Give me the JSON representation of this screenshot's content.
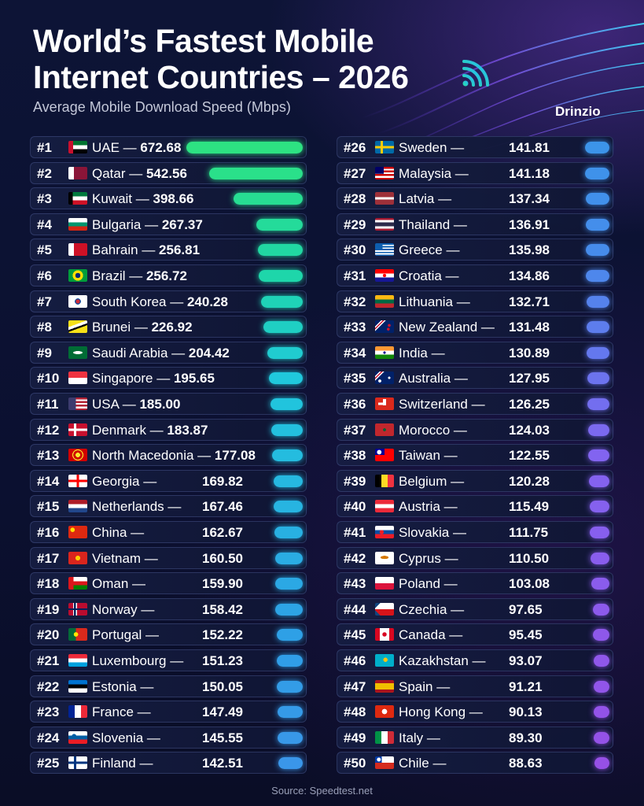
{
  "title_line1": "World’s Fastest Mobile",
  "title_line2": "Internet Countries – 2026",
  "subtitle": "Average Mobile Download Speed (Mbps)",
  "brand": "Drinzio",
  "source": "Source: Speedtest.net",
  "icon": "wifi-icon",
  "chart_data": {
    "type": "bar",
    "orientation": "horizontal",
    "title": "World’s Fastest Mobile Internet Countries – 2026",
    "subtitle": "Average Mobile Download Speed (Mbps)",
    "unit": "Mbps",
    "rows": [
      {
        "rank": "#1",
        "country": "UAE",
        "value": 672.68,
        "value_label": "672.68"
      },
      {
        "rank": "#2",
        "country": "Qatar",
        "value": 542.56,
        "value_label": "542.56"
      },
      {
        "rank": "#3",
        "country": "Kuwait",
        "value": 398.66,
        "value_label": "398.66"
      },
      {
        "rank": "#4",
        "country": "Bulgaria",
        "value": 267.37,
        "value_label": "267.37"
      },
      {
        "rank": "#5",
        "country": "Bahrain",
        "value": 256.81,
        "value_label": "256.81"
      },
      {
        "rank": "#6",
        "country": "Brazil",
        "value": 256.72,
        "value_label": "256.72"
      },
      {
        "rank": "#7",
        "country": "South Korea",
        "value": 240.28,
        "value_label": "240.28"
      },
      {
        "rank": "#8",
        "country": "Brunei",
        "value": 226.92,
        "value_label": "226.92"
      },
      {
        "rank": "#9",
        "country": "Saudi Arabia",
        "value": 204.42,
        "value_label": "204.42"
      },
      {
        "rank": "#10",
        "country": "Singapore",
        "value": 195.65,
        "value_label": "195.65"
      },
      {
        "rank": "#11",
        "country": "USA",
        "value": 185.0,
        "value_label": "185.00"
      },
      {
        "rank": "#12",
        "country": "Denmark",
        "value": 183.87,
        "value_label": "183.87"
      },
      {
        "rank": "#13",
        "country": "North Macedonia",
        "value": 177.08,
        "value_label": "177.08"
      },
      {
        "rank": "#14",
        "country": "Georgia",
        "value": 169.82,
        "value_label": "169.82"
      },
      {
        "rank": "#15",
        "country": "Netherlands",
        "value": 167.46,
        "value_label": "167.46"
      },
      {
        "rank": "#16",
        "country": "China",
        "value": 162.67,
        "value_label": "162.67"
      },
      {
        "rank": "#17",
        "country": "Vietnam",
        "value": 160.5,
        "value_label": "160.50"
      },
      {
        "rank": "#18",
        "country": "Oman",
        "value": 159.9,
        "value_label": "159.90"
      },
      {
        "rank": "#19",
        "country": "Norway",
        "value": 158.42,
        "value_label": "158.42"
      },
      {
        "rank": "#20",
        "country": "Portugal",
        "value": 152.22,
        "value_label": "152.22"
      },
      {
        "rank": "#21",
        "country": "Luxembourg",
        "value": 151.23,
        "value_label": "151.23"
      },
      {
        "rank": "#22",
        "country": "Estonia",
        "value": 150.05,
        "value_label": "150.05"
      },
      {
        "rank": "#23",
        "country": "France",
        "value": 147.49,
        "value_label": "147.49"
      },
      {
        "rank": "#24",
        "country": "Slovenia",
        "value": 145.55,
        "value_label": "145.55"
      },
      {
        "rank": "#25",
        "country": "Finland",
        "value": 142.51,
        "value_label": "142.51"
      },
      {
        "rank": "#26",
        "country": "Sweden",
        "value": 141.81,
        "value_label": "141.81"
      },
      {
        "rank": "#27",
        "country": "Malaysia",
        "value": 141.18,
        "value_label": "141.18"
      },
      {
        "rank": "#28",
        "country": "Latvia",
        "value": 137.34,
        "value_label": "137.34"
      },
      {
        "rank": "#29",
        "country": "Thailand",
        "value": 136.91,
        "value_label": "136.91"
      },
      {
        "rank": "#30",
        "country": "Greece",
        "value": 135.98,
        "value_label": "135.98"
      },
      {
        "rank": "#31",
        "country": "Croatia",
        "value": 134.86,
        "value_label": "134.86"
      },
      {
        "rank": "#32",
        "country": "Lithuania",
        "value": 132.71,
        "value_label": "132.71"
      },
      {
        "rank": "#33",
        "country": "New Zealand",
        "value": 131.48,
        "value_label": "131.48"
      },
      {
        "rank": "#34",
        "country": "India",
        "value": 130.89,
        "value_label": "130.89"
      },
      {
        "rank": "#35",
        "country": "Australia",
        "value": 127.95,
        "value_label": "127.95"
      },
      {
        "rank": "#36",
        "country": "Switzerland",
        "value": 126.25,
        "value_label": "126.25"
      },
      {
        "rank": "#37",
        "country": "Morocco",
        "value": 124.03,
        "value_label": "124.03"
      },
      {
        "rank": "#38",
        "country": "Taiwan",
        "value": 122.55,
        "value_label": "122.55"
      },
      {
        "rank": "#39",
        "country": "Belgium",
        "value": 120.28,
        "value_label": "120.28"
      },
      {
        "rank": "#40",
        "country": "Austria",
        "value": 115.49,
        "value_label": "115.49"
      },
      {
        "rank": "#41",
        "country": "Slovakia",
        "value": 111.75,
        "value_label": "111.75"
      },
      {
        "rank": "#42",
        "country": "Cyprus",
        "value": 110.5,
        "value_label": "110.50"
      },
      {
        "rank": "#43",
        "country": "Poland",
        "value": 103.08,
        "value_label": "103.08"
      },
      {
        "rank": "#44",
        "country": "Czechia",
        "value": 97.65,
        "value_label": "97.65"
      },
      {
        "rank": "#45",
        "country": "Canada",
        "value": 95.45,
        "value_label": "95.45"
      },
      {
        "rank": "#46",
        "country": "Kazakhstan",
        "value": 93.07,
        "value_label": "93.07"
      },
      {
        "rank": "#47",
        "country": "Spain",
        "value": 91.21,
        "value_label": "91.21"
      },
      {
        "rank": "#48",
        "country": "Hong Kong",
        "value": 90.13,
        "value_label": "90.13"
      },
      {
        "rank": "#49",
        "country": "Italy",
        "value": 89.3,
        "value_label": "89.30"
      },
      {
        "rank": "#50",
        "country": "Chile",
        "value": 88.63,
        "value_label": "88.63"
      }
    ]
  }
}
